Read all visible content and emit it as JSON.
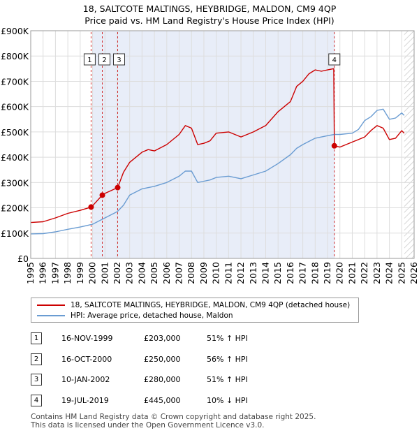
{
  "title_line1": "18, SALTCOTE MALTINGS, HEYBRIDGE, MALDON, CM9 4QP",
  "title_line2": "Price paid vs. HM Land Registry's House Price Index (HPI)",
  "chart_data": {
    "type": "line",
    "title": "18, SALTCOTE MALTINGS, HEYBRIDGE, MALDON, CM9 4QP - Price paid vs. HM Land Registry's House Price Index (HPI)",
    "xlabel": "",
    "ylabel": "",
    "xlim": [
      1995,
      2026
    ],
    "ylim": [
      0,
      900000
    ],
    "y_ticks": [
      0,
      100000,
      200000,
      300000,
      400000,
      500000,
      600000,
      700000,
      800000,
      900000
    ],
    "y_tick_labels": [
      "£0",
      "£100K",
      "£200K",
      "£300K",
      "£400K",
      "£500K",
      "£600K",
      "£700K",
      "£800K",
      "£900K"
    ],
    "x_ticks": [
      1995,
      1996,
      1997,
      1998,
      1999,
      2000,
      2001,
      2002,
      2003,
      2004,
      2005,
      2006,
      2007,
      2008,
      2009,
      2010,
      2011,
      2012,
      2013,
      2014,
      2015,
      2016,
      2017,
      2018,
      2019,
      2020,
      2021,
      2022,
      2023,
      2024,
      2025,
      2026
    ],
    "grid": true,
    "shaded_region": [
      2000.0,
      2019.6
    ],
    "hatched_region": [
      2025.2,
      2026
    ],
    "series": [
      {
        "name": "18, SALTCOTE MALTINGS, HEYBRIDGE, MALDON, CM9 4QP (detached house)",
        "color": "#cc0000",
        "x": [
          1995.0,
          1996.0,
          1997.0,
          1998.0,
          1999.0,
          1999.88,
          2000.0,
          2000.79,
          2001.0,
          2002.03,
          2002.5,
          2003.0,
          2004.0,
          2004.5,
          2005.0,
          2006.0,
          2007.0,
          2007.5,
          2008.0,
          2008.5,
          2009.0,
          2009.5,
          2010.0,
          2011.0,
          2012.0,
          2013.0,
          2014.0,
          2015.0,
          2016.0,
          2016.5,
          2017.0,
          2017.5,
          2018.0,
          2018.5,
          2019.0,
          2019.5,
          2019.55,
          2020.0,
          2021.0,
          2022.0,
          2022.5,
          2023.0,
          2023.5,
          2024.0,
          2024.5,
          2025.0,
          2025.2
        ],
        "values": [
          142000,
          145000,
          160000,
          178000,
          190000,
          203000,
          208000,
          250000,
          257000,
          280000,
          340000,
          380000,
          420000,
          430000,
          425000,
          450000,
          490000,
          525000,
          515000,
          450000,
          455000,
          465000,
          495000,
          500000,
          480000,
          500000,
          525000,
          580000,
          620000,
          680000,
          700000,
          730000,
          745000,
          740000,
          745000,
          750000,
          445000,
          440000,
          460000,
          480000,
          505000,
          525000,
          515000,
          470000,
          475000,
          505000,
          495000
        ]
      },
      {
        "name": "HPI: Average price, detached house, Maldon",
        "color": "#6a9cd2",
        "x": [
          1995.0,
          1996.0,
          1997.0,
          1998.0,
          1999.0,
          2000.0,
          2001.0,
          2002.0,
          2002.5,
          2003.0,
          2004.0,
          2005.0,
          2006.0,
          2007.0,
          2007.5,
          2008.0,
          2008.5,
          2009.0,
          2009.5,
          2010.0,
          2011.0,
          2012.0,
          2013.0,
          2014.0,
          2015.0,
          2016.0,
          2016.5,
          2017.0,
          2018.0,
          2019.0,
          2019.55,
          2020.0,
          2021.0,
          2021.5,
          2022.0,
          2022.5,
          2023.0,
          2023.5,
          2024.0,
          2024.5,
          2025.0,
          2025.2
        ],
        "values": [
          97000,
          98000,
          105000,
          115000,
          124000,
          135000,
          160000,
          185000,
          210000,
          250000,
          275000,
          285000,
          300000,
          325000,
          345000,
          345000,
          300000,
          305000,
          310000,
          320000,
          325000,
          315000,
          330000,
          345000,
          375000,
          410000,
          435000,
          450000,
          475000,
          485000,
          490000,
          490000,
          495000,
          510000,
          545000,
          560000,
          585000,
          590000,
          550000,
          555000,
          575000,
          565000
        ]
      }
    ],
    "markers": [
      {
        "label": "1",
        "x": 1999.88,
        "y": 203000
      },
      {
        "label": "2",
        "x": 2000.79,
        "y": 250000
      },
      {
        "label": "3",
        "x": 2002.03,
        "y": 280000
      },
      {
        "label": "4",
        "x": 2019.55,
        "y": 445000
      }
    ]
  },
  "legend": {
    "red_label": "18, SALTCOTE MALTINGS, HEYBRIDGE, MALDON, CM9 4QP (detached house)",
    "blue_label": "HPI: Average price, detached house, Maldon"
  },
  "transactions": [
    {
      "num": "1",
      "date": "16-NOV-1999",
      "price": "£203,000",
      "hpi": "51% ↑ HPI"
    },
    {
      "num": "2",
      "date": "16-OCT-2000",
      "price": "£250,000",
      "hpi": "56% ↑ HPI"
    },
    {
      "num": "3",
      "date": "10-JAN-2002",
      "price": "£280,000",
      "hpi": "51% ↑ HPI"
    },
    {
      "num": "4",
      "date": "19-JUL-2019",
      "price": "£445,000",
      "hpi": "10% ↓ HPI"
    }
  ],
  "footer_line1": "Contains HM Land Registry data © Crown copyright and database right 2025.",
  "footer_line2": "This data is licensed under the Open Government Licence v3.0."
}
